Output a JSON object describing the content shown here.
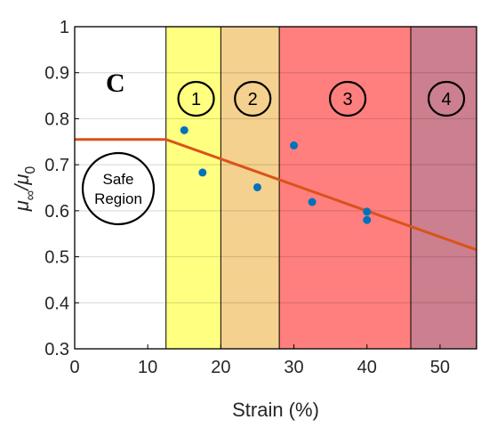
{
  "chart_data": {
    "type": "scatter",
    "panel_letter": "C",
    "xlabel": "Strain (%)",
    "ylabel": "μ∞/μ0",
    "xlim": [
      0,
      55
    ],
    "ylim": [
      0.3,
      1.0
    ],
    "x_ticks": [
      "0",
      "10",
      "20",
      "30",
      "40",
      "50"
    ],
    "y_ticks": [
      "0.3",
      "0.4",
      "0.5",
      "0.6",
      "0.7",
      "0.8",
      "0.9",
      "1"
    ],
    "grid": "horizontal",
    "regions": [
      {
        "label": "Safe Region",
        "x_start": 0,
        "x_end": 12.5,
        "color": "#ffffff"
      },
      {
        "label": "1",
        "x_start": 12.5,
        "x_end": 20,
        "color": "#ffff80"
      },
      {
        "label": "2",
        "x_start": 20,
        "x_end": 28,
        "color": "#f4d18e"
      },
      {
        "label": "3",
        "x_start": 28,
        "x_end": 46,
        "color": "#ff7f7f"
      },
      {
        "label": "4",
        "x_start": 46,
        "x_end": 55,
        "color": "#cc7f8e"
      }
    ],
    "points": [
      {
        "x": 15,
        "y": 0.775
      },
      {
        "x": 17.5,
        "y": 0.683
      },
      {
        "x": 25,
        "y": 0.651
      },
      {
        "x": 30,
        "y": 0.742
      },
      {
        "x": 32.5,
        "y": 0.619
      },
      {
        "x": 40,
        "y": 0.598
      },
      {
        "x": 40,
        "y": 0.58
      }
    ],
    "fit_line": [
      {
        "x": 0,
        "y": 0.755
      },
      {
        "x": 12.5,
        "y": 0.755
      },
      {
        "x": 55,
        "y": 0.515
      }
    ],
    "point_color": "#0072bd",
    "line_color": "#d95319"
  }
}
